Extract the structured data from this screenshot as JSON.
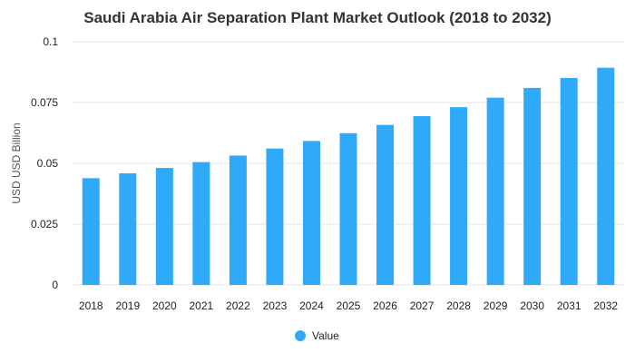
{
  "chart_data": {
    "type": "bar",
    "title": "Saudi Arabia Air Separation Plant Market Outlook (2018 to 2032)",
    "xlabel": "",
    "ylabel": "USD USD Billion",
    "categories": [
      "2018",
      "2019",
      "2020",
      "2021",
      "2022",
      "2023",
      "2024",
      "2025",
      "2026",
      "2027",
      "2028",
      "2029",
      "2030",
      "2031",
      "2032"
    ],
    "series": [
      {
        "name": "Value",
        "values": [
          0.0439,
          0.0459,
          0.0481,
          0.0505,
          0.0532,
          0.0561,
          0.0592,
          0.0624,
          0.0658,
          0.0694,
          0.0731,
          0.077,
          0.081,
          0.0851,
          0.0893
        ]
      }
    ],
    "ylim": [
      0,
      0.1
    ],
    "yticks": [
      0,
      0.025,
      0.05,
      0.075,
      0.1
    ],
    "ytick_labels": [
      "0",
      "0.025",
      "0.05",
      "0.075",
      "0.1"
    ],
    "grid": true,
    "legend_position": "bottom-center",
    "colors": {
      "bar": "#2eaaf9",
      "grid": "#e6e6e6",
      "title": "#333333"
    }
  }
}
